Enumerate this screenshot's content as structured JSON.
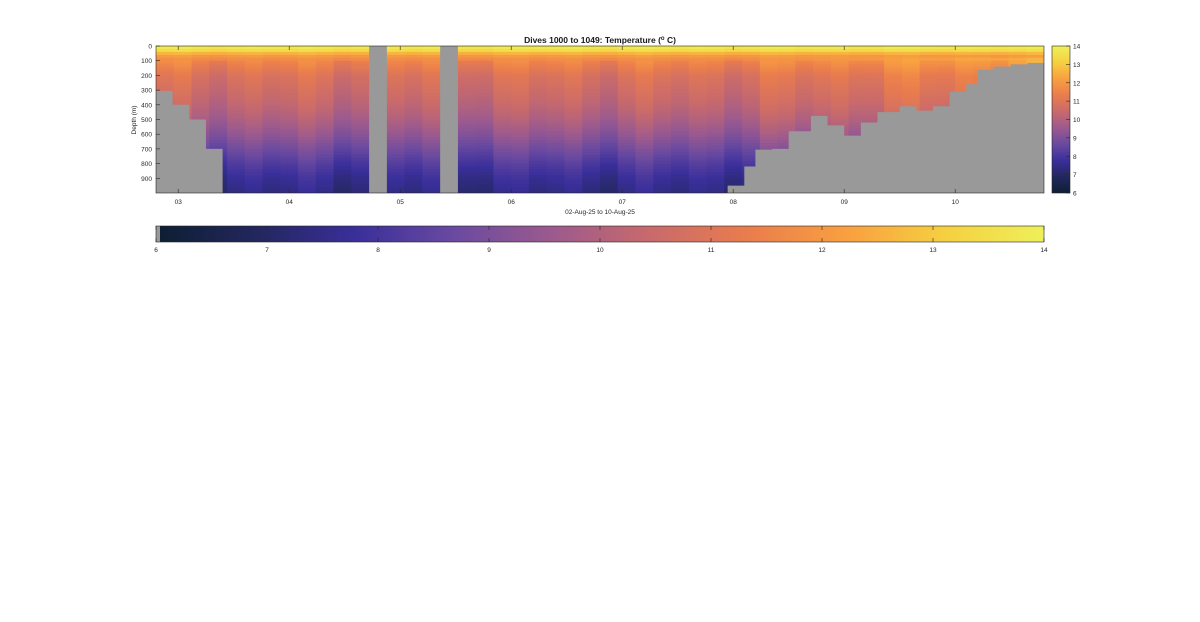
{
  "chart_data": {
    "type": "heatmap",
    "title": "Dives 1000 to 1049: Temperature (",
    "title_superscript": "o",
    "title_suffix": " C)",
    "xlabel": "02-Aug-25 to 10-Aug-25",
    "ylabel": "Depth (m)",
    "xlim": [
      2.8,
      10.8
    ],
    "ylim": [
      0,
      1000
    ],
    "y_reversed": true,
    "x_ticks": [
      3,
      4,
      5,
      6,
      7,
      8,
      9,
      10
    ],
    "x_tick_labels": [
      "03",
      "04",
      "05",
      "06",
      "07",
      "08",
      "09",
      "10"
    ],
    "y_ticks": [
      0,
      100,
      200,
      300,
      400,
      500,
      600,
      700,
      800,
      900
    ],
    "y_tick_labels": [
      "0",
      "100",
      "200",
      "300",
      "400",
      "500",
      "600",
      "700",
      "800",
      "900"
    ],
    "color_range": [
      6,
      14
    ],
    "colorbar_ticks": [
      6,
      7,
      8,
      9,
      10,
      11,
      12,
      13,
      14
    ],
    "colorbar_tick_labels": [
      "6",
      "7",
      "8",
      "9",
      "10",
      "11",
      "12",
      "13",
      "14"
    ],
    "colormap": [
      "#0d1f33",
      "#23275e",
      "#3a2f9b",
      "#6a4aa0",
      "#9c5a8e",
      "#c96a6b",
      "#ea7d4d",
      "#f9a040",
      "#f5d041",
      "#eef05a"
    ],
    "nodata_color": "#999999",
    "grid": false,
    "temperature_profile": {
      "depths": [
        0,
        30,
        60,
        100,
        200,
        300,
        400,
        500,
        600,
        700,
        800,
        900,
        1000
      ],
      "temps": [
        13.9,
        13.4,
        12.2,
        11.6,
        10.9,
        10.6,
        10.3,
        9.9,
        9.4,
        8.8,
        8.2,
        7.7,
        7.4
      ]
    },
    "seafloor_depth": {
      "x": [
        2.8,
        2.95,
        3.1,
        3.25,
        3.4,
        3.55,
        6.1,
        7.9,
        7.95,
        8.1,
        8.2,
        8.35,
        8.5,
        8.7,
        8.85,
        9.0,
        9.15,
        9.3,
        9.5,
        9.65,
        9.8,
        9.95,
        10.1,
        10.2,
        10.35,
        10.5,
        10.65,
        10.8
      ],
      "depth": [
        305,
        400,
        500,
        700,
        1000,
        1000,
        1000,
        1000,
        950,
        820,
        705,
        700,
        580,
        475,
        540,
        610,
        520,
        450,
        410,
        440,
        410,
        310,
        260,
        160,
        140,
        125,
        115,
        110
      ]
    },
    "data_gaps": [
      [
        4.72,
        4.88
      ],
      [
        5.36,
        5.52
      ]
    ]
  }
}
